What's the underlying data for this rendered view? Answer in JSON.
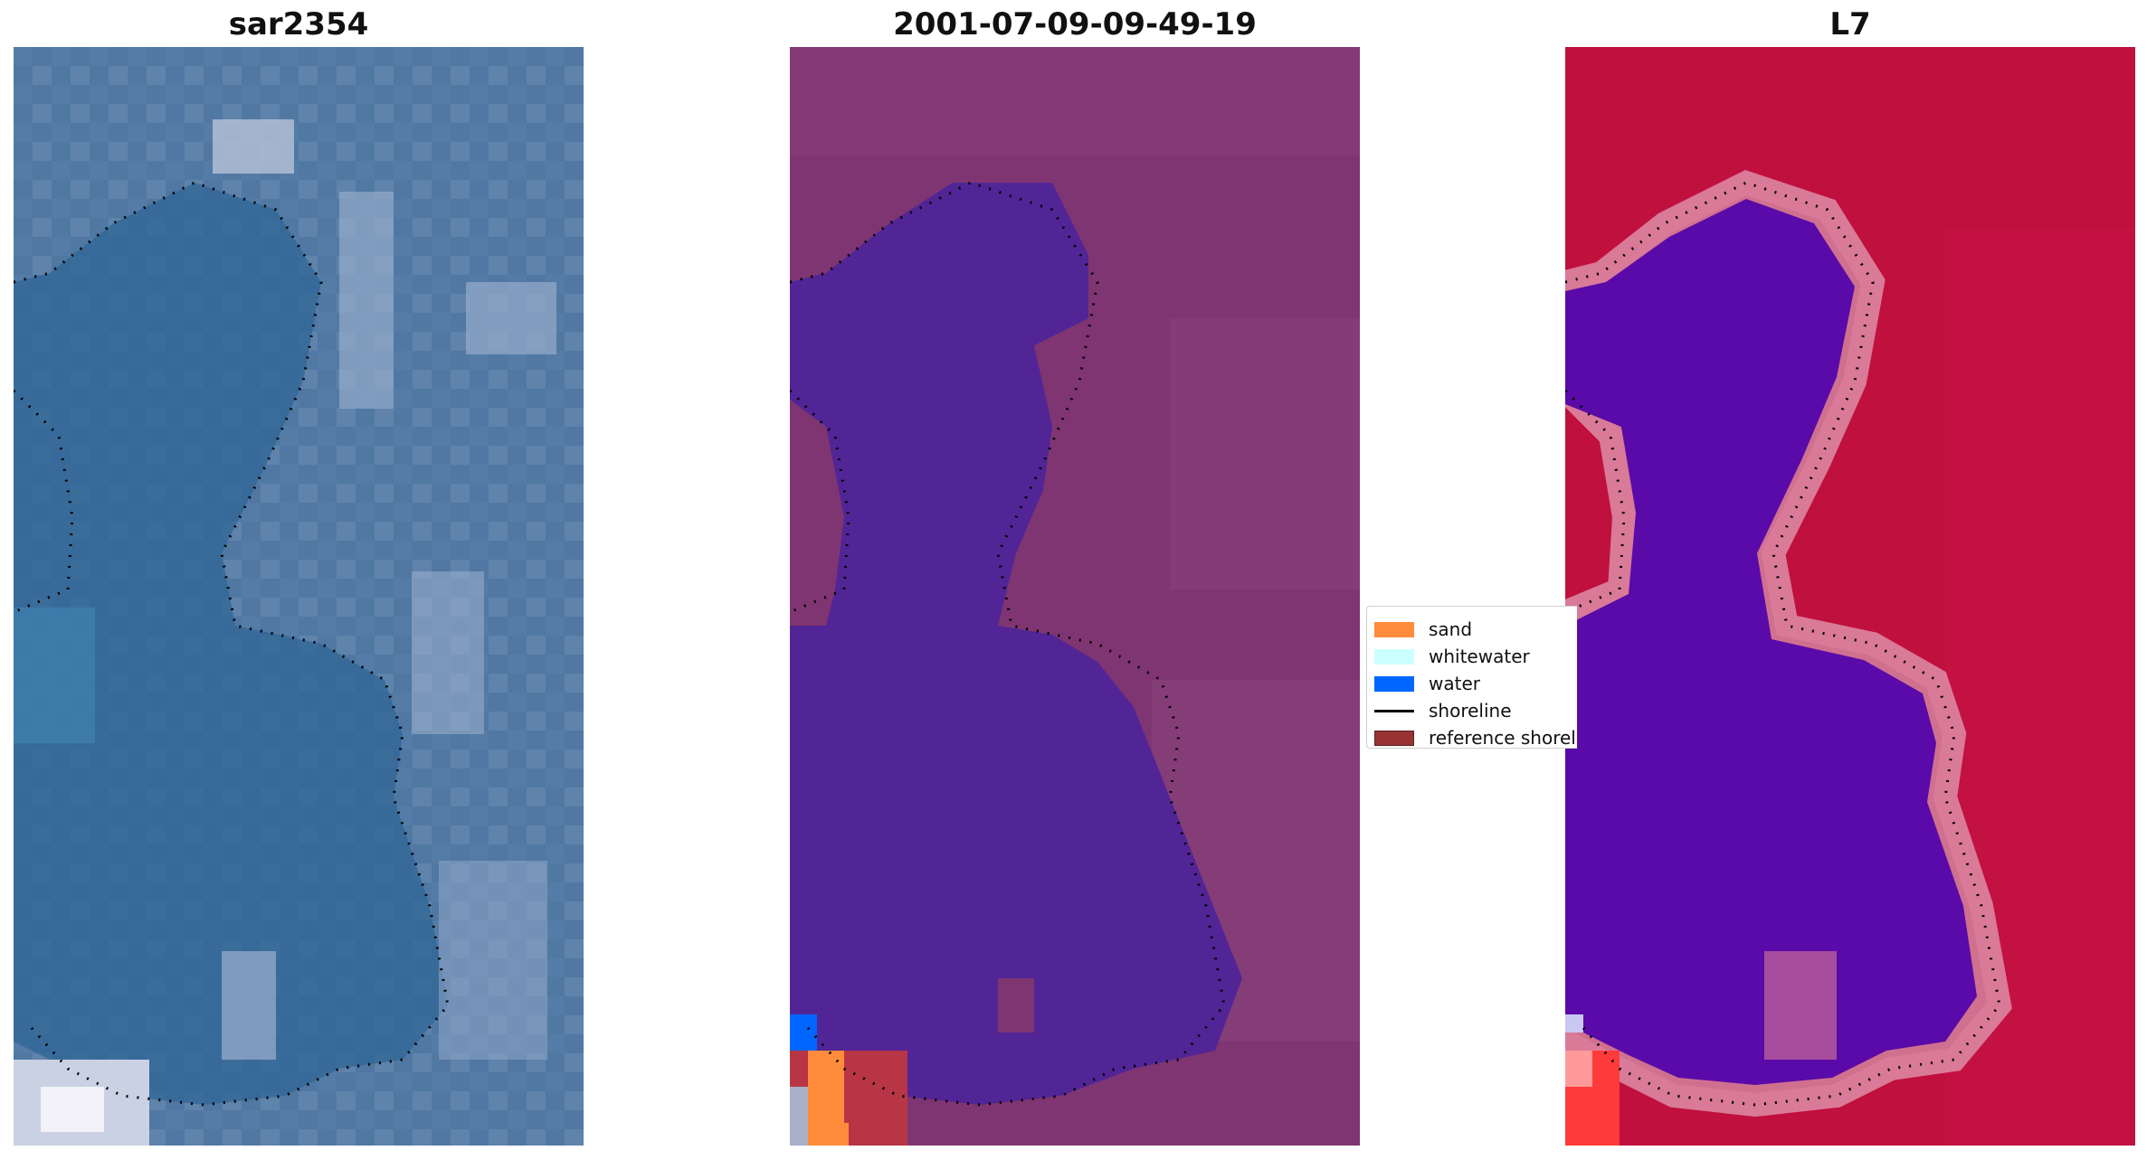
{
  "panels": [
    {
      "title": "sar2354"
    },
    {
      "title": "2001-07-09-09-49-19"
    },
    {
      "title": "L7"
    }
  ],
  "legend": {
    "items": [
      {
        "label": "sand",
        "color": "#ff8c3a",
        "kind": "patch"
      },
      {
        "label": "whitewater",
        "color": "#ccffff",
        "kind": "patch"
      },
      {
        "label": "water",
        "color": "#0066ff",
        "kind": "patch"
      },
      {
        "label": "shoreline",
        "color": "#000000",
        "kind": "line"
      },
      {
        "label": "reference shoreline",
        "color": "#993333",
        "kind": "patch"
      }
    ]
  },
  "colors": {
    "rgb_land": "#4f7aa6",
    "rgb_water": "#2f6596",
    "class_land": "#7f3571",
    "class_water": "#522596",
    "ndwi_land": "#c0103d",
    "ndwi_water": "#5a0aa8"
  }
}
